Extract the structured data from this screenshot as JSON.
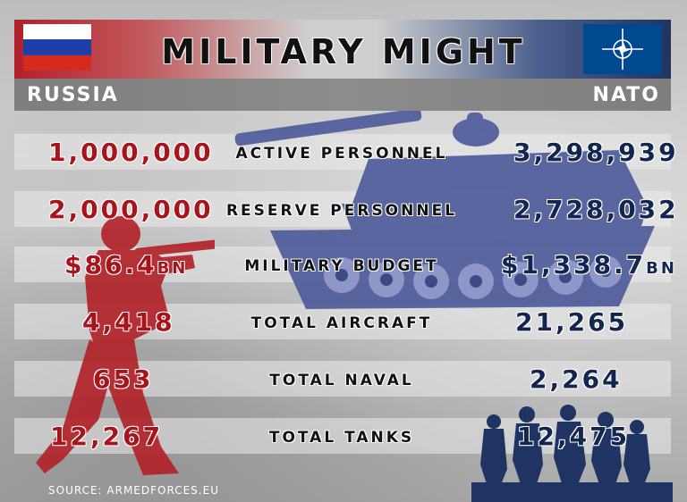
{
  "title": "MILITARY MIGHT",
  "left_label": "RUSSIA",
  "right_label": "NATO",
  "rows": [
    {
      "metric": "ACTIVE PERSONNEL",
      "russia": "1,000,000",
      "russia_unit": "",
      "nato": "3,298,939",
      "nato_unit": ""
    },
    {
      "metric": "RESERVE PERSONNEL",
      "russia": "2,000,000",
      "russia_unit": "",
      "nato": "2,728,032",
      "nato_unit": ""
    },
    {
      "metric": "MILITARY BUDGET",
      "russia": "$86.4",
      "russia_unit": "BN",
      "nato": "$1,338.7",
      "nato_unit": "BN"
    },
    {
      "metric": "TOTAL AIRCRAFT",
      "russia": "4,418",
      "russia_unit": "",
      "nato": "21,265",
      "nato_unit": ""
    },
    {
      "metric": "TOTAL NAVAL",
      "russia": "653",
      "russia_unit": "",
      "nato": "2,264",
      "nato_unit": ""
    },
    {
      "metric": "TOTAL TANKS",
      "russia": "12,267",
      "russia_unit": "",
      "nato": "12,475",
      "nato_unit": ""
    }
  ],
  "source": "SOURCE: ARMEDFORCES.EU",
  "colors": {
    "russia_red": "#a8131c",
    "nato_blue": "#13264f",
    "nato_flag": "#004990"
  },
  "icons": {
    "russia_flag": "russia-flag-icon",
    "nato_flag": "nato-flag-icon",
    "tank": "tank-icon",
    "soldier": "soldier-icon",
    "troops": "troops-icon"
  }
}
